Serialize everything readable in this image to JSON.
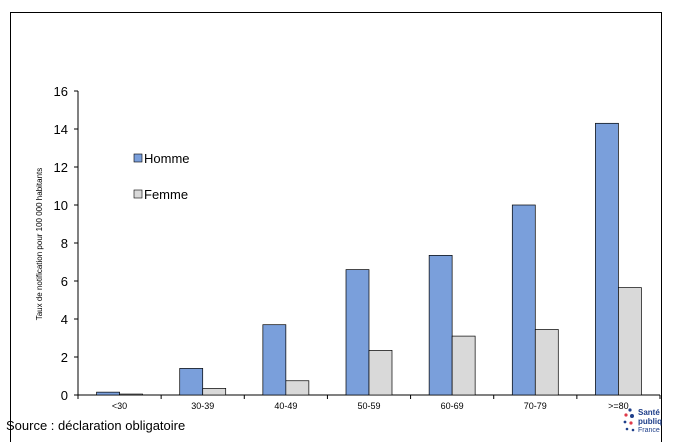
{
  "chart_data": {
    "type": "bar",
    "title": "",
    "xlabel": "",
    "ylabel": "Taux de notification pour 100 000 habitants",
    "ylim": [
      0,
      16
    ],
    "yticks": [
      0,
      2,
      4,
      6,
      8,
      10,
      12,
      14,
      16
    ],
    "categories": [
      "<30",
      "30-39",
      "40-49",
      "50-59",
      "60-69",
      "70-79",
      ">=80"
    ],
    "series": [
      {
        "name": "Homme",
        "color": "#7a9fdb",
        "values": [
          0.15,
          1.4,
          3.7,
          6.6,
          7.35,
          10.0,
          14.3
        ]
      },
      {
        "name": "Femme",
        "color": "#d9d9d9",
        "values": [
          0.05,
          0.35,
          0.75,
          2.35,
          3.1,
          3.45,
          5.65
        ]
      }
    ],
    "grid": false,
    "legend": "top-left"
  },
  "footer": {
    "source": "Source : déclaration obligatoire"
  },
  "logo": {
    "line1": "Santé",
    "line2": "publiq",
    "line3": "France",
    "icon": "dots-logo-icon"
  }
}
